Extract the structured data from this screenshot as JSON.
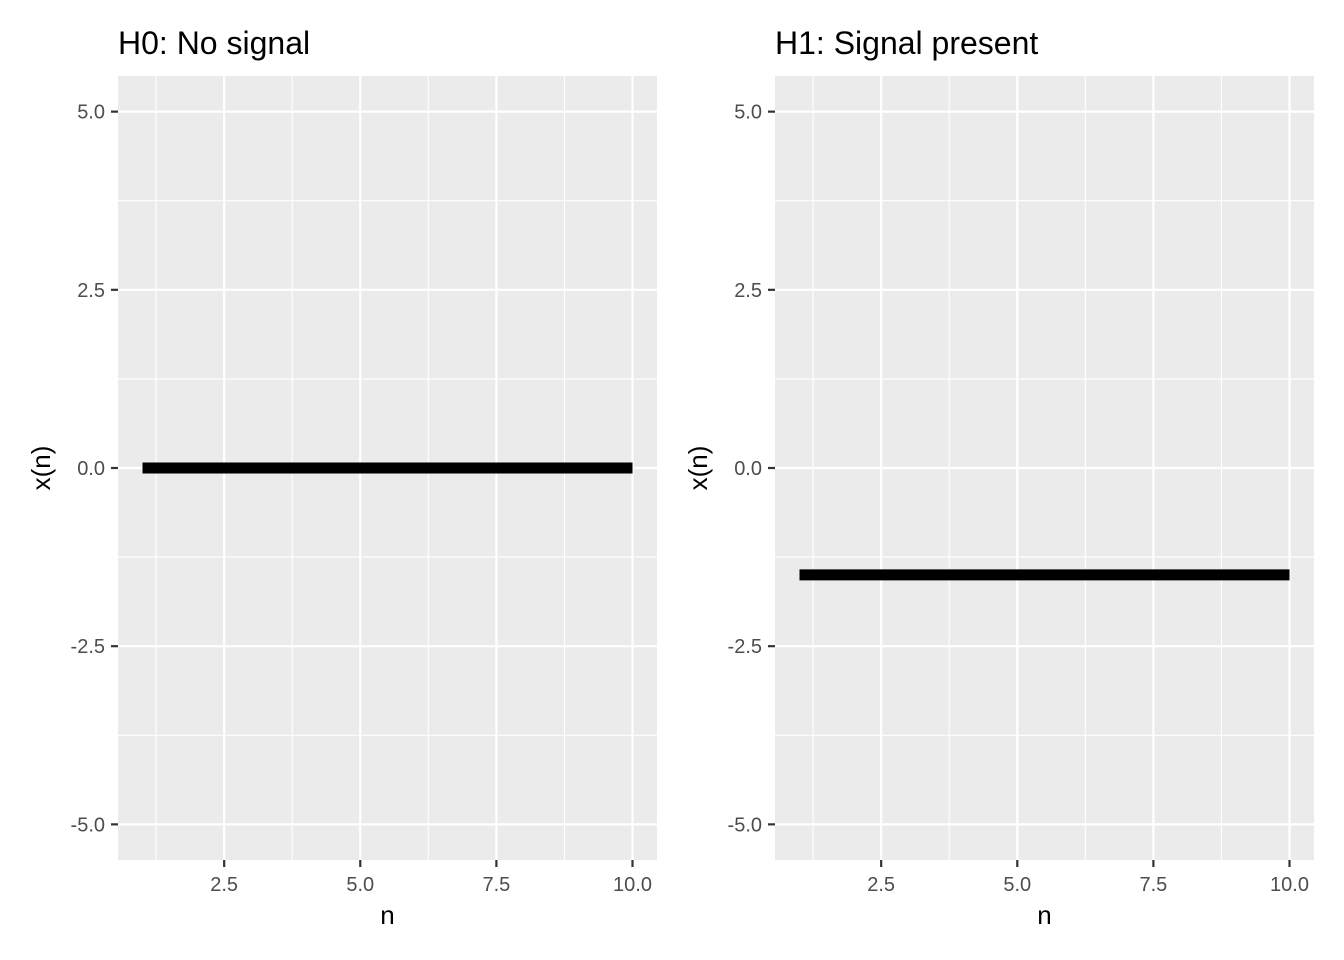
{
  "chart_data": [
    {
      "type": "line",
      "title": "H0: No signal",
      "xlabel": "n",
      "ylabel": "x(n)",
      "xlim": [
        0.55,
        10.45
      ],
      "ylim": [
        -5.5,
        5.5
      ],
      "x_ticks": [
        2.5,
        5.0,
        7.5,
        10.0
      ],
      "x_tick_labels": [
        "2.5",
        "5.0",
        "7.5",
        "10.0"
      ],
      "y_ticks": [
        5.0,
        2.5,
        0.0,
        -2.5,
        -5.0
      ],
      "y_tick_labels": [
        "5.0",
        "2.5",
        "0.0",
        "-2.5",
        "-5.0"
      ],
      "grid": true,
      "series": [
        {
          "x": [
            1,
            2,
            3,
            4,
            5,
            6,
            7,
            8,
            9,
            10
          ],
          "values": [
            0,
            0,
            0,
            0,
            0,
            0,
            0,
            0,
            0,
            0
          ],
          "color": "#000000"
        }
      ]
    },
    {
      "type": "line",
      "title": "H1: Signal present",
      "xlabel": "n",
      "ylabel": "x(n)",
      "xlim": [
        0.55,
        10.45
      ],
      "ylim": [
        -5.5,
        5.5
      ],
      "x_ticks": [
        2.5,
        5.0,
        7.5,
        10.0
      ],
      "x_tick_labels": [
        "2.5",
        "5.0",
        "7.5",
        "10.0"
      ],
      "y_ticks": [
        5.0,
        2.5,
        0.0,
        -2.5,
        -5.0
      ],
      "y_tick_labels": [
        "5.0",
        "2.5",
        "0.0",
        "-2.5",
        "-5.0"
      ],
      "grid": true,
      "series": [
        {
          "x": [
            1,
            2,
            3,
            4,
            5,
            6,
            7,
            8,
            9,
            10
          ],
          "values": [
            -1.5,
            -1.5,
            -1.5,
            -1.5,
            -1.5,
            -1.5,
            -1.5,
            -1.5,
            -1.5,
            -1.5
          ],
          "color": "#000000"
        }
      ]
    }
  ]
}
